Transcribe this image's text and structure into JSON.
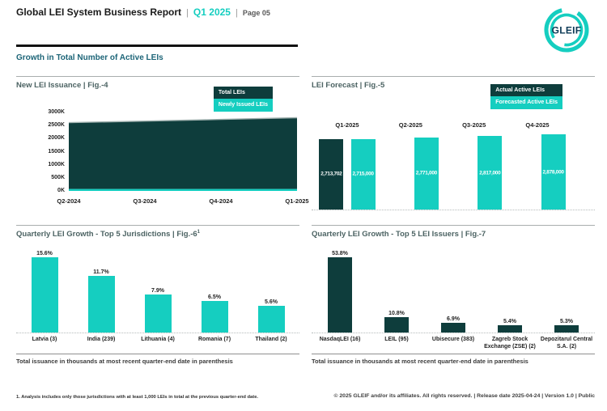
{
  "header": {
    "title": "Global LEI System Business Report",
    "separator": "|",
    "period": "Q1 2025",
    "page": "Page 05"
  },
  "logo": {
    "text": "GLEIF"
  },
  "section_heading": "Growth in Total Number of Active LEIs",
  "colors": {
    "brand_teal": "#15CEC0",
    "brand_dark_teal": "#0E3D3C",
    "heading_teal": "#1D6578"
  },
  "chart_data": [
    {
      "id": "fig4",
      "type": "area",
      "title": "New LEI Issuance | Fig.-4",
      "legend": [
        {
          "label": "Total LEIs",
          "swatch": "dark"
        },
        {
          "label": "Newly Issued LEIs",
          "swatch": "teal"
        }
      ],
      "legend_position": "top-right",
      "x": [
        "Q2-2024",
        "Q3-2024",
        "Q4-2024",
        "Q1-2025"
      ],
      "series": [
        {
          "name": "Total LEIs",
          "values": [
            2610000,
            2670000,
            2735000,
            2800000
          ]
        },
        {
          "name": "Newly Issued LEIs",
          "values": [
            75000,
            75000,
            75000,
            75000
          ]
        }
      ],
      "values_estimated_from_pixels": true,
      "ylim": [
        0,
        3000000
      ],
      "yticks": [
        "3000K",
        "2500K",
        "2000K",
        "1500K",
        "1000K",
        "500K",
        "0K"
      ],
      "grid": false
    },
    {
      "id": "fig5",
      "type": "bar",
      "title": "LEI Forecast | Fig.-5",
      "legend": [
        {
          "label": "Actual Active LEIs",
          "swatch": "dark"
        },
        {
          "label": "Forecasted Active LEIs",
          "swatch": "teal"
        }
      ],
      "legend_position": "top-right",
      "categories": [
        "Q1-2025",
        "Q2-2025",
        "Q3-2025",
        "Q4-2025"
      ],
      "bars": [
        {
          "category": "Q1-2025",
          "series": "Actual Active LEIs",
          "value": 2713702,
          "label": "2,713,702",
          "swatch": "dark"
        },
        {
          "category": "Q1-2025",
          "series": "Forecasted Active LEIs",
          "value": 2715000,
          "label": "2,715,000",
          "swatch": "teal"
        },
        {
          "category": "Q2-2025",
          "series": "Forecasted Active LEIs",
          "value": 2771000,
          "label": "2,771,000",
          "swatch": "teal"
        },
        {
          "category": "Q3-2025",
          "series": "Forecasted Active LEIs",
          "value": 2817000,
          "label": "2,817,000",
          "swatch": "teal"
        },
        {
          "category": "Q4-2025",
          "series": "Forecasted Active LEIs",
          "value": 2878000,
          "label": "2,878,000",
          "swatch": "teal"
        }
      ],
      "grid": false
    },
    {
      "id": "fig6",
      "type": "bar",
      "title": "Quarterly LEI Growth - Top 5 Jurisdictions | Fig.-6",
      "title_sup": "1",
      "categories": [
        "Latvia (3)",
        "India (239)",
        "Lithuania (4)",
        "Romania (7)",
        "Thailand (2)"
      ],
      "values": [
        15.6,
        11.7,
        7.9,
        6.5,
        5.6
      ],
      "labels": [
        "15.6%",
        "11.7%",
        "7.9%",
        "6.5%",
        "5.6%"
      ],
      "unit": "%",
      "bar_color": "teal",
      "caption": "Total issuance in thousands at most recent quarter-end date in parenthesis",
      "grid": false
    },
    {
      "id": "fig7",
      "type": "bar",
      "title": "Quarterly LEI Growth - Top 5 LEI Issuers | Fig.-7",
      "categories": [
        "NasdaqLEI (16)",
        "LEIL (95)",
        "Ubisecure (383)",
        "Zagreb Stock Exchange (ZSE) (2)",
        "Depozitarul Central S.A. (2)"
      ],
      "values": [
        53.8,
        10.8,
        6.9,
        5.4,
        5.3
      ],
      "labels": [
        "53.8%",
        "10.8%",
        "6.9%",
        "5.4%",
        "5.3%"
      ],
      "unit": "%",
      "bar_color": "dark",
      "caption": "Total issuance in thousands at most recent quarter-end date in parenthesis",
      "grid": false
    }
  ],
  "footnote": "1. Analysis includes only those jurisdictions with at least 1,000 LEIs in total at the previous quarter-end date.",
  "footer": "© 2025 GLEIF and/or its affiliates. All rights reserved. | Release date 2025-04-24 | Version 1.0 | Public"
}
